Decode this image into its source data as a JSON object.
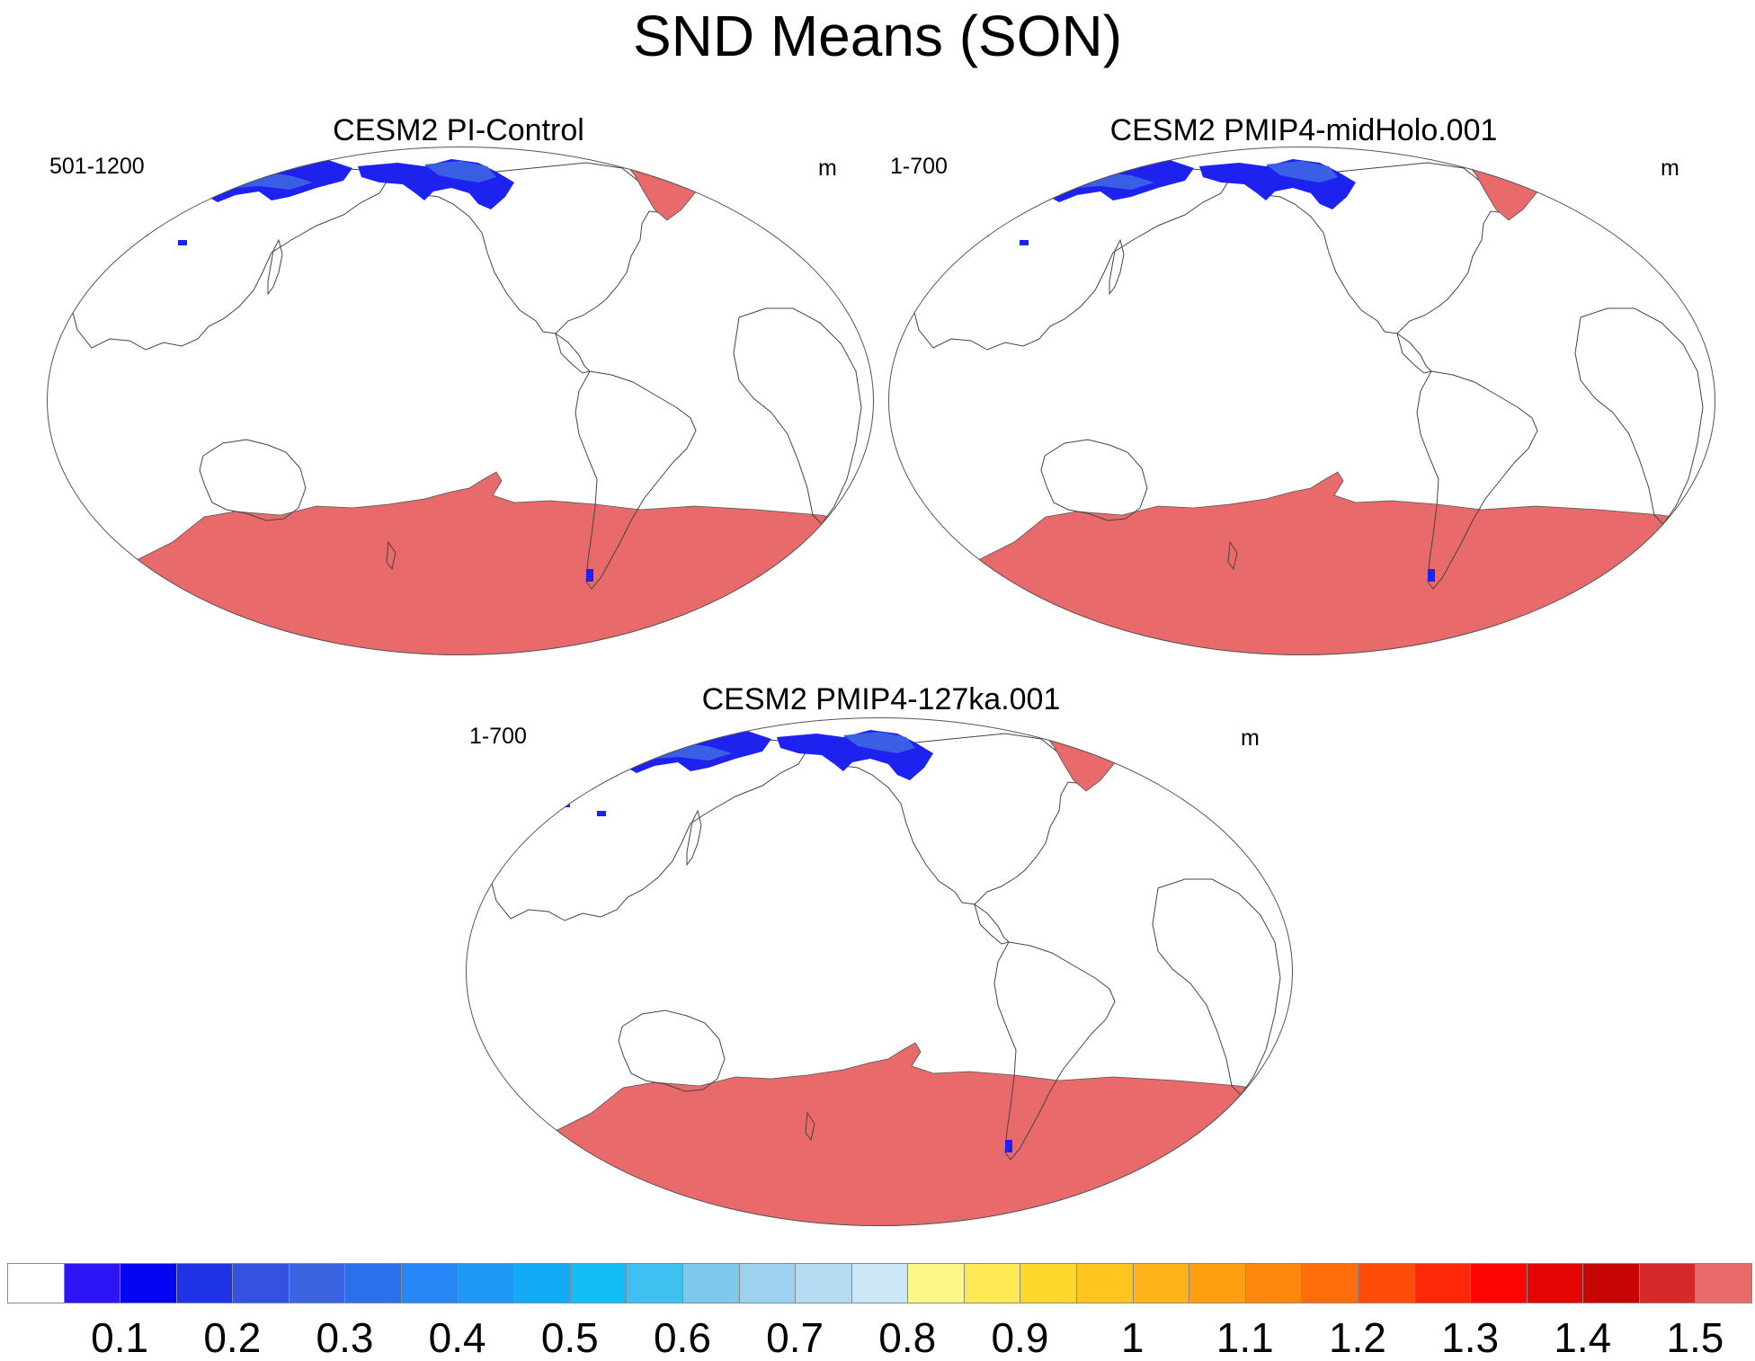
{
  "title": "SND Means (SON)",
  "panels": [
    {
      "title": "CESM2 PI-Control",
      "years": "501-1200",
      "units": "m"
    },
    {
      "title": "CESM2 PMIP4-midHolo.001",
      "years": "1-700",
      "units": "m"
    },
    {
      "title": "CESM2 PMIP4-127ka.001",
      "years": "1-700",
      "units": "m"
    }
  ],
  "colorbar": {
    "colors": [
      "#ffffff",
      "#2d14f5",
      "#0505f2",
      "#1e33e6",
      "#3452e0",
      "#3a64e0",
      "#2c6fea",
      "#2686f5",
      "#1d98f5",
      "#12aaf5",
      "#10bef5",
      "#40c0f0",
      "#7ec8ec",
      "#9cd2ef",
      "#b4ddf2",
      "#cce7f5",
      "#fdf78a",
      "#fee854",
      "#fed72c",
      "#fec51f",
      "#feb31a",
      "#fe9e10",
      "#fe870e",
      "#fe6d0b",
      "#fe4c0a",
      "#fe2708",
      "#fe0505",
      "#e60505",
      "#c80505",
      "#d62a2a",
      "#e86a6a"
    ],
    "labels": [
      "0.1",
      "0.2",
      "0.3",
      "0.4",
      "0.5",
      "0.6",
      "0.7",
      "0.8",
      "0.9",
      "1",
      "1.1",
      "1.2",
      "1.3",
      "1.4",
      "1.5"
    ]
  },
  "legend_colors": {
    "snow_dark_blue": "#1e22ee",
    "snow_mid_blue": "#3a5fe4",
    "ice_sheet": "#e86a6a"
  }
}
